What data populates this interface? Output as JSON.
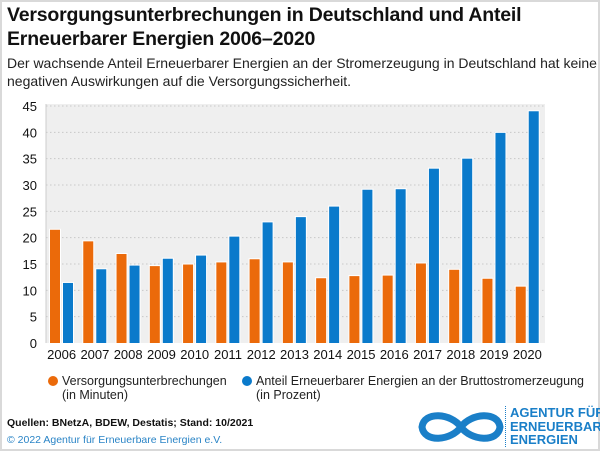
{
  "title": "Versorgungsunterbrechungen in Deutschland und Anteil Erneuerbarer Energien 2006–2020",
  "subtitle": "Der wachsende Anteil Erneuerbarer Energien an der Stromerzeugung in Deutschland hat keine negativen Auswirkungen auf die Versorgungssicherheit.",
  "chart_data": {
    "type": "bar",
    "categories": [
      "2006",
      "2007",
      "2008",
      "2009",
      "2010",
      "2011",
      "2012",
      "2013",
      "2014",
      "2015",
      "2016",
      "2017",
      "2018",
      "2019",
      "2020"
    ],
    "series": [
      {
        "name": "Versorgungsunterbrechungen (in Minuten)",
        "color": "#eb6a0a",
        "values": [
          21.5,
          19.3,
          16.9,
          14.6,
          14.9,
          15.3,
          15.9,
          15.3,
          12.3,
          12.7,
          12.8,
          15.1,
          13.9,
          12.2,
          10.7
        ]
      },
      {
        "name": "Anteil Erneuerbarer Energien an der Bruttostromerzeugung (in Prozent)",
        "color": "#0a7acb",
        "values": [
          11.4,
          14.0,
          14.7,
          16.0,
          16.6,
          20.2,
          22.9,
          23.9,
          25.9,
          29.1,
          29.2,
          33.1,
          35.0,
          39.9,
          44.0
        ]
      }
    ],
    "yticks": [
      "0",
      "5",
      "10",
      "15",
      "20",
      "25",
      "30",
      "35",
      "40",
      "45"
    ],
    "ylim": [
      0,
      45
    ],
    "grid": true,
    "legend": "bottom"
  },
  "legend": {
    "item1_line1": "Versorgungsunterbrechungen",
    "item1_line2": "(in Minuten)",
    "item2_line1": "Anteil Erneuerbarer Energien an der Bruttostromerzeugung",
    "item2_line2": "(in Prozent)"
  },
  "footer": {
    "sources": "Quellen: BNetzA, BDEW, Destatis; Stand: 10/2021",
    "copyright": "© 2022 Agentur für Erneuerbare Energien e.V."
  },
  "logo": {
    "line1": "AGENTUR FÜR",
    "line2": "ERNEUERBARE",
    "line3": "ENERGIEN"
  }
}
